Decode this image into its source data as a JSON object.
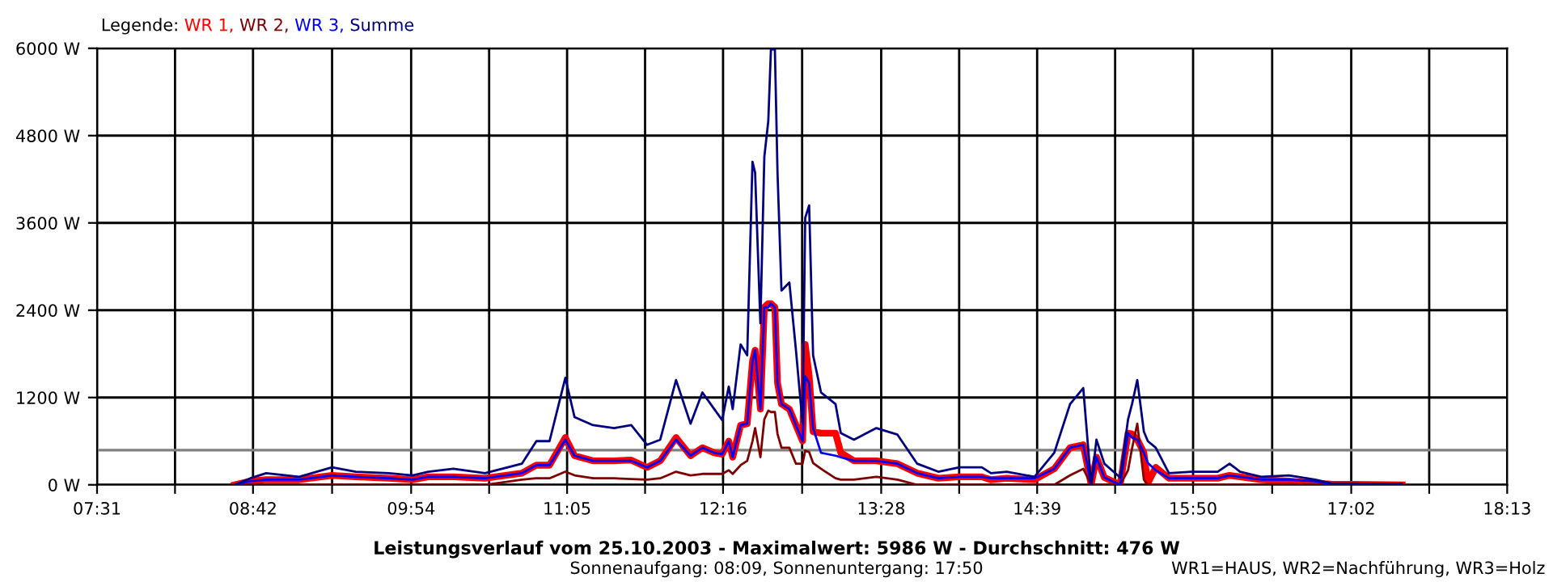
{
  "chart_data": {
    "type": "line",
    "title": "Leistungsverlauf vom 25.10.2003 - Maximalwert: 5986 W - Durchschnitt: 476 W",
    "subtitle": "Sonnenaufgang: 08:09, Sonnenuntergang: 17:50",
    "legend_title": "Legende:",
    "annotations": [
      "WR1=HAUS, WR2=Nachführung, WR3=Holz"
    ],
    "x": [
      8.56,
      8.68,
      8.8,
      9.05,
      9.3,
      9.48,
      9.73,
      9.91,
      10.03,
      10.22,
      10.46,
      10.74,
      10.85,
      10.95,
      11.07,
      11.14,
      11.28,
      11.44,
      11.57,
      11.69,
      11.79,
      11.91,
      12.02,
      12.11,
      12.2,
      12.26,
      12.31,
      12.34,
      12.4,
      12.45,
      12.49,
      12.51,
      12.55,
      12.58,
      12.61,
      12.63,
      12.66,
      12.68,
      12.71,
      12.77,
      12.82,
      12.87,
      12.89,
      12.92,
      12.95,
      13.01,
      13.12,
      13.16,
      13.26,
      13.43,
      13.59,
      13.74,
      13.9,
      14.06,
      14.23,
      14.3,
      14.42,
      14.63,
      14.78,
      14.9,
      15.0,
      15.06,
      15.1,
      15.16,
      15.28,
      15.34,
      15.37,
      15.41,
      15.46,
      15.49,
      15.55,
      15.65,
      15.82,
      16.02,
      16.11,
      16.19,
      16.35,
      16.56,
      16.76,
      16.88,
      17.42
    ],
    "series": [
      {
        "name": "WR 1,",
        "color": "#ff0000",
        "values": [
          0,
          50,
          70,
          70,
          130,
          110,
          90,
          70,
          110,
          110,
          90,
          160,
          270,
          270,
          650,
          400,
          330,
          330,
          340,
          240,
          330,
          650,
          400,
          510,
          440,
          420,
          600,
          380,
          820,
          840,
          1700,
          1850,
          1040,
          2440,
          2490,
          2490,
          2440,
          1400,
          1110,
          1040,
          820,
          600,
          1930,
          1500,
          730,
          710,
          710,
          440,
          330,
          330,
          290,
          160,
          90,
          110,
          110,
          70,
          90,
          70,
          220,
          510,
          550,
          0,
          380,
          100,
          0,
          710,
          700,
          620,
          440,
          20,
          240,
          90,
          90,
          90,
          130,
          110,
          70,
          50,
          20,
          10,
          0
        ]
      },
      {
        "name": "WR 2,",
        "color": "#800000",
        "values": [
          0,
          0,
          0,
          0,
          0,
          0,
          0,
          0,
          0,
          0,
          0,
          70,
          90,
          90,
          180,
          130,
          90,
          90,
          80,
          70,
          90,
          180,
          130,
          150,
          150,
          150,
          200,
          150,
          270,
          330,
          600,
          780,
          380,
          900,
          1020,
          1000,
          1000,
          700,
          510,
          510,
          290,
          290,
          470,
          450,
          300,
          220,
          90,
          70,
          70,
          110,
          70,
          0,
          0,
          0,
          0,
          0,
          0,
          0,
          0,
          130,
          220,
          0,
          0,
          0,
          0,
          200,
          500,
          840,
          70,
          0,
          0,
          0,
          0,
          0,
          0,
          0,
          0,
          0,
          0,
          0,
          0
        ]
      },
      {
        "name": "WR 3,",
        "color": "#0000ff",
        "values": [
          0,
          50,
          70,
          70,
          130,
          110,
          90,
          70,
          110,
          110,
          90,
          160,
          270,
          270,
          620,
          400,
          330,
          330,
          330,
          240,
          330,
          620,
          400,
          510,
          440,
          420,
          600,
          380,
          820,
          840,
          1700,
          1850,
          1040,
          2440,
          2440,
          2490,
          2440,
          1400,
          1110,
          1040,
          820,
          600,
          1490,
          1400,
          780,
          440,
          400,
          380,
          330,
          330,
          290,
          160,
          90,
          110,
          110,
          90,
          90,
          90,
          220,
          510,
          550,
          0,
          380,
          100,
          0,
          710,
          650,
          620,
          440,
          300,
          200,
          90,
          90,
          90,
          130,
          110,
          70,
          70,
          50,
          10,
          10
        ]
      },
      {
        "name": "Summe",
        "color": "#000080",
        "values": [
          0,
          90,
          160,
          110,
          240,
          180,
          160,
          130,
          180,
          220,
          160,
          290,
          600,
          600,
          1470,
          930,
          820,
          780,
          820,
          550,
          620,
          1440,
          840,
          1270,
          1040,
          890,
          1350,
          1040,
          1930,
          1780,
          4440,
          4290,
          2220,
          4510,
          5000,
          5986,
          5986,
          4290,
          2670,
          2780,
          1850,
          840,
          3670,
          3840,
          1780,
          1270,
          1110,
          710,
          620,
          780,
          690,
          290,
          180,
          240,
          240,
          160,
          180,
          110,
          440,
          1110,
          1330,
          0,
          620,
          290,
          100,
          900,
          1110,
          1440,
          730,
          600,
          510,
          160,
          180,
          180,
          290,
          180,
          110,
          130,
          70,
          20,
          10
        ]
      }
    ],
    "xlim": [
      7.5167,
      18.2167
    ],
    "xticks": [
      {
        "value": 7.5167,
        "label": "07:31"
      },
      {
        "value": 8.1083,
        "label": null
      },
      {
        "value": 8.7,
        "label": "08:42"
      },
      {
        "value": 9.3,
        "label": null
      },
      {
        "value": 9.9,
        "label": "09:54"
      },
      {
        "value": 10.4917,
        "label": null
      },
      {
        "value": 11.0833,
        "label": "11:05"
      },
      {
        "value": 11.675,
        "label": null
      },
      {
        "value": 12.2667,
        "label": "12:16"
      },
      {
        "value": 12.8667,
        "label": null
      },
      {
        "value": 13.4667,
        "label": "13:28"
      },
      {
        "value": 14.0583,
        "label": null
      },
      {
        "value": 14.65,
        "label": "14:39"
      },
      {
        "value": 15.2417,
        "label": null
      },
      {
        "value": 15.8333,
        "label": "15:50"
      },
      {
        "value": 16.4333,
        "label": null
      },
      {
        "value": 17.0333,
        "label": "17:02"
      },
      {
        "value": 17.625,
        "label": null
      },
      {
        "value": 18.2167,
        "label": "18:13"
      }
    ],
    "ylim": [
      0,
      6000
    ],
    "yticks": [
      {
        "value": 0,
        "label": "0 W"
      },
      {
        "value": 1200,
        "label": "1200 W"
      },
      {
        "value": 2400,
        "label": "2400 W"
      },
      {
        "value": 3600,
        "label": "3600 W"
      },
      {
        "value": 4800,
        "label": "4800 W"
      },
      {
        "value": 6000,
        "label": "6000 W"
      }
    ],
    "ref_lines": [
      {
        "axis": "y",
        "value": 476,
        "color": "#808080"
      }
    ],
    "grid": true,
    "legend": "top left",
    "line_style": "solid"
  }
}
